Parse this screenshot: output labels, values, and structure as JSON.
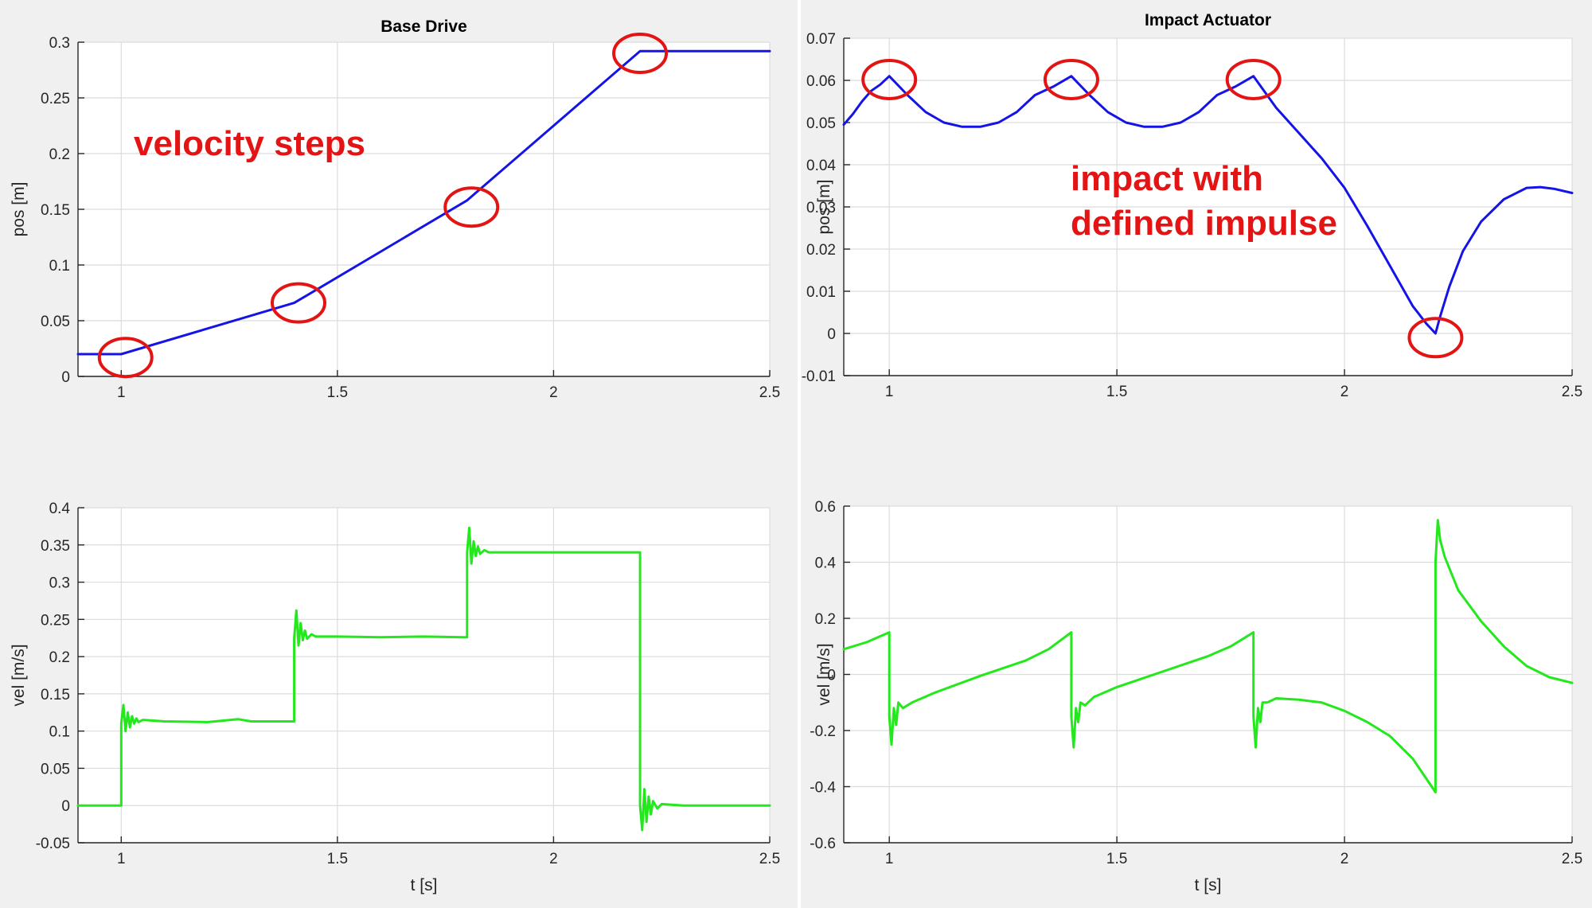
{
  "colors": {
    "position": "#1414e6",
    "velocity": "#22e81c",
    "annotation": "#e41414",
    "grid": "#dcdcdc",
    "axes": "#262626"
  },
  "chart_data": [
    {
      "id": "base-pos",
      "type": "line",
      "title": "Base Drive",
      "xlabel": "",
      "ylabel": "pos [m]",
      "xlim": [
        0.9,
        2.5
      ],
      "ylim": [
        0,
        0.3
      ],
      "xticks": [
        1,
        1.5,
        2,
        2.5
      ],
      "xticklabels": [
        "1",
        "1.5",
        "2",
        "2.5"
      ],
      "yticks": [
        0,
        0.05,
        0.1,
        0.15,
        0.2,
        0.25,
        0.3
      ],
      "yticklabels": [
        "0",
        "0.05",
        "0.1",
        "0.15",
        "0.2",
        "0.25",
        "0.3"
      ],
      "grid": true,
      "series": [
        {
          "color": "#1414e6",
          "x": [
            0.9,
            1.0,
            1.4,
            1.8,
            2.2,
            2.5
          ],
          "y": [
            0.02,
            0.02,
            0.066,
            0.158,
            0.292,
            0.292
          ]
        }
      ],
      "markers": [
        {
          "x": 1.01,
          "y": 0.017
        },
        {
          "x": 1.41,
          "y": 0.066
        },
        {
          "x": 1.81,
          "y": 0.152
        },
        {
          "x": 2.2,
          "y": 0.29
        }
      ],
      "annotation": [
        "velocity steps"
      ]
    },
    {
      "id": "impact-pos",
      "type": "line",
      "title": "Impact Actuator",
      "xlabel": "",
      "ylabel": "pos [m]",
      "xlim": [
        0.9,
        2.5
      ],
      "ylim": [
        -0.01,
        0.07
      ],
      "xticks": [
        1,
        1.5,
        2,
        2.5
      ],
      "xticklabels": [
        "1",
        "1.5",
        "2",
        "2.5"
      ],
      "yticks": [
        -0.01,
        0,
        0.01,
        0.02,
        0.03,
        0.04,
        0.05,
        0.06,
        0.07
      ],
      "yticklabels": [
        "-0.01",
        "0",
        "0.01",
        "0.02",
        "0.03",
        "0.04",
        "0.05",
        "0.06",
        "0.07"
      ],
      "grid": true,
      "series": [
        {
          "color": "#1414e6",
          "x": [
            0.9,
            0.92,
            0.94,
            0.96,
            0.98,
            1.0,
            1.04,
            1.08,
            1.12,
            1.16,
            1.2,
            1.24,
            1.28,
            1.32,
            1.36,
            1.4,
            1.44,
            1.48,
            1.52,
            1.56,
            1.6,
            1.64,
            1.68,
            1.72,
            1.76,
            1.8,
            1.85,
            1.9,
            1.95,
            2.0,
            2.05,
            2.1,
            2.15,
            2.18,
            2.2,
            2.21,
            2.23,
            2.26,
            2.3,
            2.35,
            2.4,
            2.43,
            2.46,
            2.5
          ],
          "y": [
            0.0495,
            0.052,
            0.055,
            0.0575,
            0.059,
            0.061,
            0.0565,
            0.0525,
            0.05,
            0.049,
            0.049,
            0.05,
            0.0525,
            0.0565,
            0.0585,
            0.061,
            0.0565,
            0.0525,
            0.05,
            0.049,
            0.049,
            0.05,
            0.0525,
            0.0565,
            0.0585,
            0.061,
            0.0535,
            0.0475,
            0.0415,
            0.0345,
            0.0255,
            0.016,
            0.0065,
            0.0023,
            0.0,
            0.004,
            0.011,
            0.0195,
            0.0265,
            0.0318,
            0.0345,
            0.0347,
            0.0343,
            0.0333
          ]
        }
      ],
      "markers": [
        {
          "x": 1.0,
          "y": 0.0602
        },
        {
          "x": 1.4,
          "y": 0.0602
        },
        {
          "x": 1.8,
          "y": 0.0602
        },
        {
          "x": 2.2,
          "y": -0.001
        }
      ],
      "annotation": [
        "impact with",
        "defined impulse"
      ]
    },
    {
      "id": "base-vel",
      "type": "line",
      "title": "",
      "xlabel": "t [s]",
      "ylabel": "vel [m/s]",
      "xlim": [
        0.9,
        2.5
      ],
      "ylim": [
        -0.05,
        0.4
      ],
      "xticks": [
        1,
        1.5,
        2,
        2.5
      ],
      "xticklabels": [
        "1",
        "1.5",
        "2",
        "2.5"
      ],
      "yticks": [
        -0.05,
        0,
        0.05,
        0.1,
        0.15,
        0.2,
        0.25,
        0.3,
        0.35,
        0.4
      ],
      "yticklabels": [
        "-0.05",
        "0",
        "0.05",
        "0.1",
        "0.15",
        "0.2",
        "0.25",
        "0.3",
        "0.35",
        "0.4"
      ],
      "grid": true,
      "series": [
        {
          "color": "#22e81c",
          "x": [
            0.9,
            1.0,
            1.0,
            1.005,
            1.01,
            1.015,
            1.02,
            1.025,
            1.03,
            1.035,
            1.04,
            1.05,
            1.1,
            1.2,
            1.27,
            1.3,
            1.39,
            1.4,
            1.4,
            1.405,
            1.41,
            1.415,
            1.42,
            1.425,
            1.43,
            1.44,
            1.45,
            1.5,
            1.6,
            1.7,
            1.79,
            1.8,
            1.8,
            1.805,
            1.81,
            1.815,
            1.82,
            1.825,
            1.83,
            1.84,
            1.85,
            1.9,
            2.0,
            2.1,
            2.19,
            2.2,
            2.2,
            2.205,
            2.21,
            2.215,
            2.22,
            2.225,
            2.23,
            2.24,
            2.25,
            2.3,
            2.5
          ],
          "y": [
            0,
            0,
            0.11,
            0.135,
            0.1,
            0.125,
            0.105,
            0.12,
            0.11,
            0.117,
            0.112,
            0.115,
            0.113,
            0.112,
            0.116,
            0.113,
            0.113,
            0.113,
            0.225,
            0.262,
            0.215,
            0.245,
            0.222,
            0.235,
            0.224,
            0.23,
            0.227,
            0.227,
            0.226,
            0.227,
            0.226,
            0.226,
            0.34,
            0.373,
            0.325,
            0.355,
            0.335,
            0.348,
            0.338,
            0.343,
            0.34,
            0.34,
            0.34,
            0.34,
            0.34,
            0.34,
            0.0,
            -0.033,
            0.022,
            -0.022,
            0.012,
            -0.012,
            0.006,
            -0.004,
            0.002,
            0.0,
            0.0
          ]
        }
      ]
    },
    {
      "id": "impact-vel",
      "type": "line",
      "title": "",
      "xlabel": "t [s]",
      "ylabel": "vel [m/s]",
      "xlim": [
        0.9,
        2.5
      ],
      "ylim": [
        -0.6,
        0.6
      ],
      "xticks": [
        1,
        1.5,
        2,
        2.5
      ],
      "xticklabels": [
        "1",
        "1.5",
        "2",
        "2.5"
      ],
      "yticks": [
        -0.6,
        -0.4,
        -0.2,
        0,
        0.2,
        0.4,
        0.6
      ],
      "yticklabels": [
        "-0.6",
        "-0.4",
        "-0.2",
        "0",
        "0.2",
        "0.4",
        "0.6"
      ],
      "grid": true,
      "series": [
        {
          "color": "#22e81c",
          "x": [
            0.9,
            0.95,
            1.0,
            1.0,
            1.005,
            1.01,
            1.015,
            1.02,
            1.03,
            1.05,
            1.1,
            1.2,
            1.3,
            1.35,
            1.4,
            1.4,
            1.405,
            1.41,
            1.415,
            1.42,
            1.43,
            1.45,
            1.5,
            1.6,
            1.7,
            1.75,
            1.8,
            1.8,
            1.805,
            1.81,
            1.815,
            1.82,
            1.83,
            1.85,
            1.9,
            1.95,
            2.0,
            2.05,
            2.1,
            2.15,
            2.2,
            2.2,
            2.205,
            2.21,
            2.22,
            2.25,
            2.3,
            2.35,
            2.4,
            2.45,
            2.5
          ],
          "y": [
            0.09,
            0.115,
            0.15,
            -0.15,
            -0.25,
            -0.12,
            -0.18,
            -0.1,
            -0.12,
            -0.1,
            -0.065,
            -0.005,
            0.05,
            0.09,
            0.15,
            -0.15,
            -0.26,
            -0.12,
            -0.17,
            -0.1,
            -0.11,
            -0.08,
            -0.045,
            0.01,
            0.065,
            0.1,
            0.15,
            -0.15,
            -0.26,
            -0.12,
            -0.17,
            -0.1,
            -0.1,
            -0.085,
            -0.09,
            -0.1,
            -0.13,
            -0.17,
            -0.22,
            -0.3,
            -0.42,
            0.4,
            0.55,
            0.48,
            0.42,
            0.3,
            0.19,
            0.1,
            0.03,
            -0.01,
            -0.03
          ]
        }
      ]
    }
  ]
}
